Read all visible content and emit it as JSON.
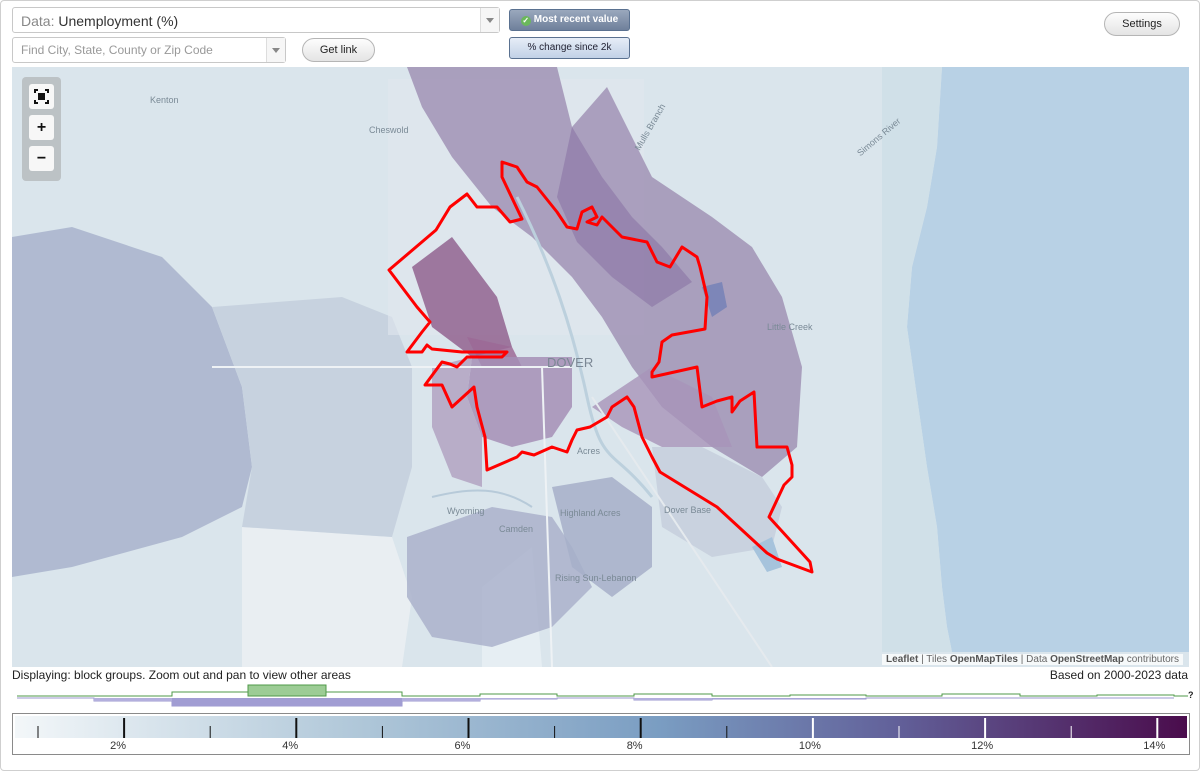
{
  "controls": {
    "data_prefix": "Data:",
    "data_value": "Unemployment (%)",
    "search_placeholder": "Find City, State, County or Zip Code",
    "get_link_label": "Get link",
    "mode_recent_label": "Most recent value",
    "mode_change_label": "% change since 2k",
    "settings_label": "Settings",
    "active_mode": "Most recent value"
  },
  "map": {
    "zoom_in_label": "+",
    "zoom_out_label": "−",
    "fullscreen_icon": "fullscreen-icon",
    "boundary_color": "#ff0000",
    "place_labels": {
      "kenton": "Kenton",
      "cheswold": "Cheswold",
      "mulls_branch": "Mulls Branch",
      "simons_river": "Simons River",
      "little_creek": "Little Creek",
      "dover": "DOVER",
      "rodney_acres": "Acres",
      "wyoming": "Wyoming",
      "camden": "Camden",
      "highland_acres": "Highland Acres",
      "dover_base": "Dover Base",
      "rising_sun": "Rising Sun-Lebanon"
    },
    "attribution": {
      "leaflet": "Leaflet",
      "sep1": "|",
      "tiles_prefix": "Tiles",
      "tiles": "OpenMapTiles",
      "sep2": "|",
      "data_prefix": "Data",
      "data": "OpenStreetMap",
      "data_suffix": "contributors"
    }
  },
  "status": {
    "displaying": "Displaying: block groups. Zoom out and pan to view other areas",
    "based_on": "Based on 2000-2023 data",
    "help_icon_text": "?"
  },
  "legend": {
    "tick_labels": [
      "2%",
      "4%",
      "6%",
      "8%",
      "10%",
      "12%",
      "14%"
    ],
    "tick_values": [
      2,
      4,
      6,
      8,
      10,
      12,
      14
    ],
    "min": 0,
    "max": 15,
    "color_low": "#f2f6f8",
    "color_mid": "#7f9cc0",
    "color_high": "#4a0e4e"
  }
}
